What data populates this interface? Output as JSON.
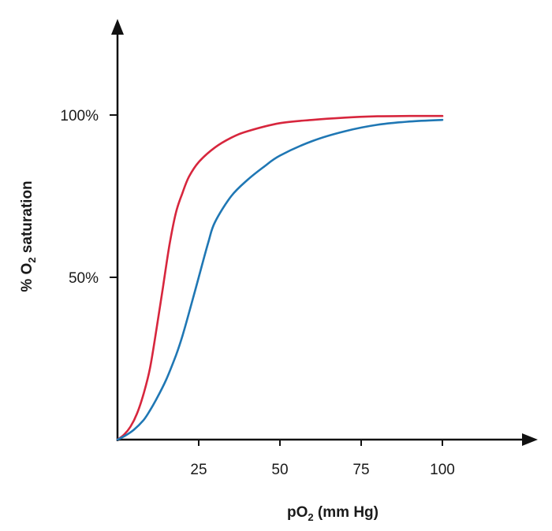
{
  "chart_data": {
    "type": "line",
    "title": "",
    "xlabel_parts": [
      "pO",
      "2",
      " (mm Hg)"
    ],
    "ylabel_parts": [
      "% O",
      "2",
      " saturation"
    ],
    "x_ticks": [
      {
        "value": 25,
        "label": "25"
      },
      {
        "value": 50,
        "label": "50"
      },
      {
        "value": 75,
        "label": "75"
      },
      {
        "value": 100,
        "label": "100"
      }
    ],
    "y_ticks": [
      {
        "value": 50,
        "label": "50%"
      },
      {
        "value": 100,
        "label": "100%"
      }
    ],
    "xlim": [
      0,
      125
    ],
    "ylim": [
      0,
      125
    ],
    "grid": false,
    "legend": "none",
    "series": [
      {
        "color": "#d7263d",
        "x": [
          0,
          2,
          4,
          6,
          8,
          10,
          12,
          14,
          16,
          18,
          20,
          22,
          25,
          30,
          35,
          40,
          50,
          60,
          70,
          80,
          90,
          100
        ],
        "y": [
          0,
          1.5,
          4,
          8,
          14,
          22,
          34,
          47,
          60,
          70,
          76,
          81,
          85.5,
          90,
          93,
          95,
          97.5,
          98.5,
          99.2,
          99.6,
          99.7,
          99.7
        ]
      },
      {
        "color": "#1f77b4",
        "x": [
          0,
          2,
          5,
          8,
          10,
          12,
          15,
          18,
          20,
          22,
          25,
          28,
          30,
          35,
          40,
          45,
          50,
          60,
          70,
          80,
          90,
          100
        ],
        "y": [
          0,
          1,
          3,
          6,
          9,
          12.5,
          18.5,
          26,
          32,
          39,
          50,
          61,
          67,
          75,
          80,
          84,
          87.5,
          92,
          95,
          97,
          98,
          98.5
        ]
      }
    ]
  }
}
